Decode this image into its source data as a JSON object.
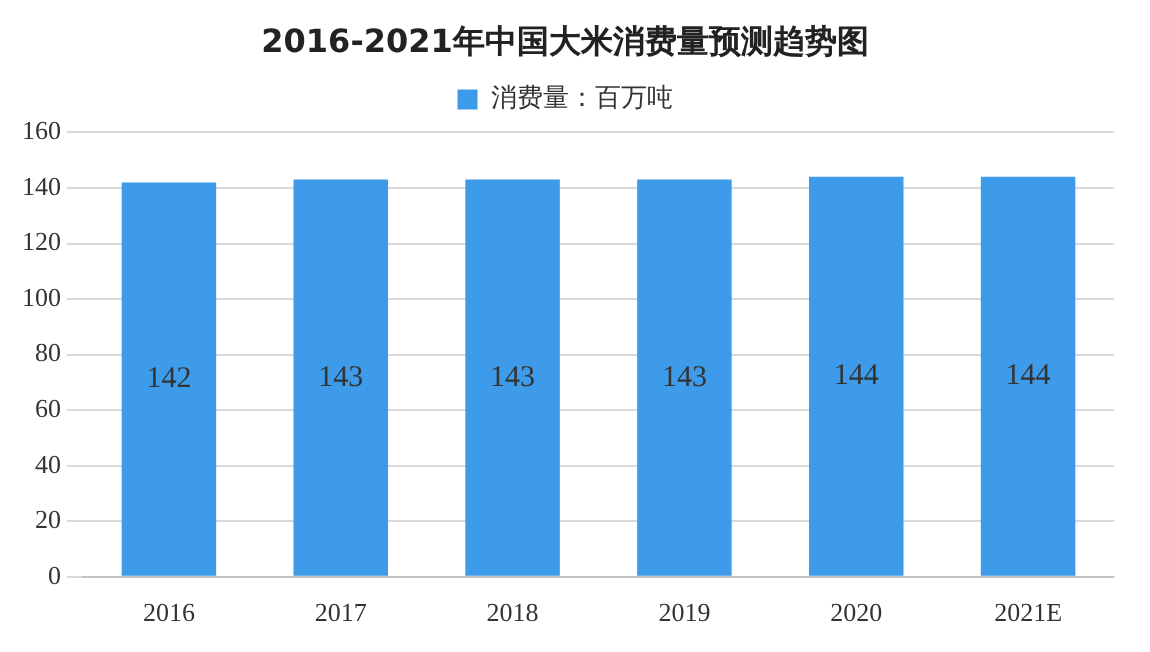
{
  "chart_data": {
    "type": "bar",
    "title": "2016-2021年中国大米消费量预测趋势图",
    "categories": [
      "2016",
      "2017",
      "2018",
      "2019",
      "2020",
      "2021E"
    ],
    "series": [
      {
        "name": "消费量：百万吨",
        "color": "#3d9be9",
        "values": [
          142,
          143,
          143,
          143,
          144,
          144
        ]
      }
    ],
    "ylim": [
      0,
      160
    ],
    "yticks": [
      0,
      20,
      40,
      60,
      80,
      100,
      120,
      140,
      160
    ],
    "grid": "y",
    "legend": "top",
    "data_labels": true
  }
}
